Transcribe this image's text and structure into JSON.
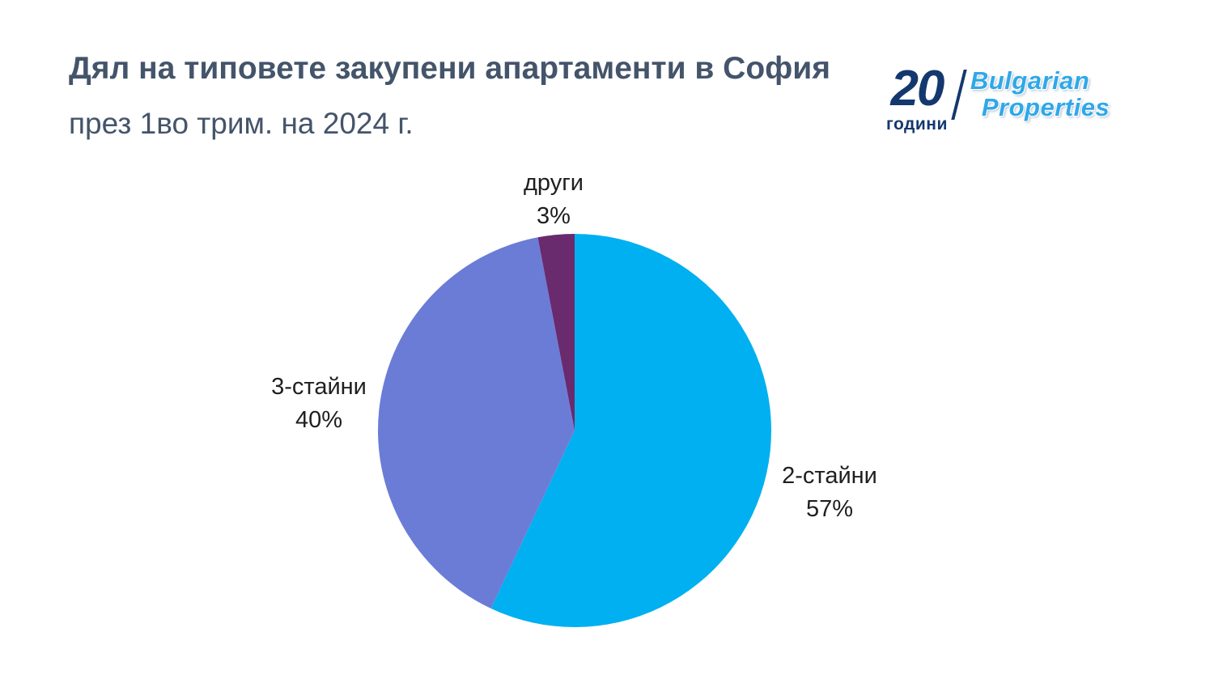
{
  "header": {
    "title_line1": "Дял на типовете закупени апартаменти в София",
    "title_line2": "през 1во трим. на 2024 г."
  },
  "logo": {
    "number": "20",
    "years_label": "години",
    "brand_line1": "Bulgarian",
    "brand_line2": "Properties"
  },
  "chart_data": {
    "type": "pie",
    "title": "Дял на типовете закупени апартаменти в София през 1во трим. на 2024 г.",
    "start_angle_deg": 0,
    "direction": "clockwise",
    "legend_position": "none",
    "slices": [
      {
        "label": "2-стайни",
        "value": 57,
        "pct_label": "57%",
        "color": "#00b0f0"
      },
      {
        "label": "3-стайни",
        "value": 40,
        "pct_label": "40%",
        "color": "#6b7cd6"
      },
      {
        "label": "други",
        "value": 3,
        "pct_label": "3%",
        "color": "#6a2a6e"
      }
    ]
  }
}
